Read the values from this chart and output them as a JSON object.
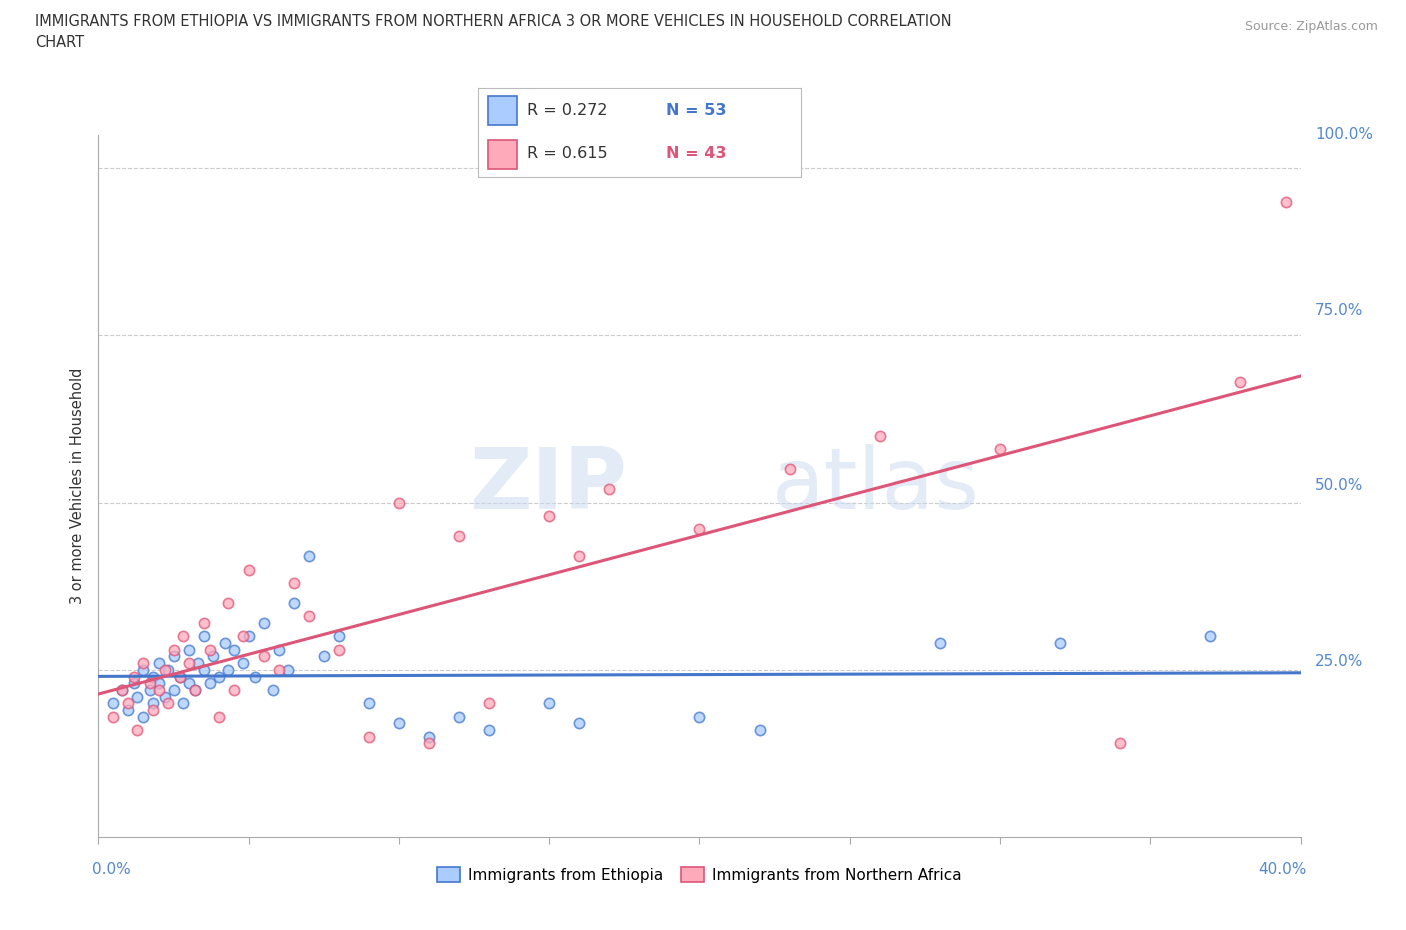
{
  "title": "IMMIGRANTS FROM ETHIOPIA VS IMMIGRANTS FROM NORTHERN AFRICA 3 OR MORE VEHICLES IN HOUSEHOLD CORRELATION\nCHART",
  "source": "Source: ZipAtlas.com",
  "ylabel": "3 or more Vehicles in Household",
  "xlim": [
    0.0,
    0.4
  ],
  "ylim": [
    0.0,
    1.05
  ],
  "ethiopia_R": 0.272,
  "ethiopia_N": 53,
  "northafrica_R": 0.615,
  "northafrica_N": 43,
  "ethiopia_color": "#aaccff",
  "ethiopia_line_color": "#4477cc",
  "northafrica_color": "#ffaabb",
  "northafrica_line_color": "#dd5577",
  "scatter_size": 55,
  "ethiopia_x": [
    0.005,
    0.008,
    0.01,
    0.012,
    0.013,
    0.015,
    0.015,
    0.017,
    0.018,
    0.018,
    0.02,
    0.02,
    0.022,
    0.023,
    0.025,
    0.025,
    0.027,
    0.028,
    0.03,
    0.03,
    0.032,
    0.033,
    0.035,
    0.035,
    0.037,
    0.038,
    0.04,
    0.042,
    0.043,
    0.045,
    0.048,
    0.05,
    0.052,
    0.055,
    0.058,
    0.06,
    0.063,
    0.065,
    0.07,
    0.075,
    0.08,
    0.09,
    0.1,
    0.11,
    0.12,
    0.13,
    0.15,
    0.16,
    0.2,
    0.22,
    0.28,
    0.32,
    0.37
  ],
  "ethiopia_y": [
    0.2,
    0.22,
    0.19,
    0.23,
    0.21,
    0.25,
    0.18,
    0.22,
    0.24,
    0.2,
    0.23,
    0.26,
    0.21,
    0.25,
    0.22,
    0.27,
    0.24,
    0.2,
    0.23,
    0.28,
    0.22,
    0.26,
    0.25,
    0.3,
    0.23,
    0.27,
    0.24,
    0.29,
    0.25,
    0.28,
    0.26,
    0.3,
    0.24,
    0.32,
    0.22,
    0.28,
    0.25,
    0.35,
    0.42,
    0.27,
    0.3,
    0.2,
    0.17,
    0.15,
    0.18,
    0.16,
    0.2,
    0.17,
    0.18,
    0.16,
    0.29,
    0.29,
    0.3
  ],
  "northafrica_x": [
    0.005,
    0.008,
    0.01,
    0.012,
    0.013,
    0.015,
    0.017,
    0.018,
    0.02,
    0.022,
    0.023,
    0.025,
    0.027,
    0.028,
    0.03,
    0.032,
    0.035,
    0.037,
    0.04,
    0.043,
    0.045,
    0.048,
    0.05,
    0.055,
    0.06,
    0.065,
    0.07,
    0.08,
    0.09,
    0.1,
    0.11,
    0.12,
    0.13,
    0.15,
    0.17,
    0.2,
    0.23,
    0.26,
    0.3,
    0.34,
    0.38,
    0.395,
    0.16
  ],
  "northafrica_y": [
    0.18,
    0.22,
    0.2,
    0.24,
    0.16,
    0.26,
    0.23,
    0.19,
    0.22,
    0.25,
    0.2,
    0.28,
    0.24,
    0.3,
    0.26,
    0.22,
    0.32,
    0.28,
    0.18,
    0.35,
    0.22,
    0.3,
    0.4,
    0.27,
    0.25,
    0.38,
    0.33,
    0.28,
    0.15,
    0.5,
    0.14,
    0.45,
    0.2,
    0.48,
    0.52,
    0.46,
    0.55,
    0.6,
    0.58,
    0.14,
    0.68,
    0.95,
    0.42
  ],
  "watermark_zip": "ZIP",
  "watermark_atlas": "atlas",
  "grid_color": "#cccccc",
  "background_color": "#ffffff",
  "text_color": "#333333",
  "axis_label_color": "#5588cc",
  "source_color": "#999999"
}
